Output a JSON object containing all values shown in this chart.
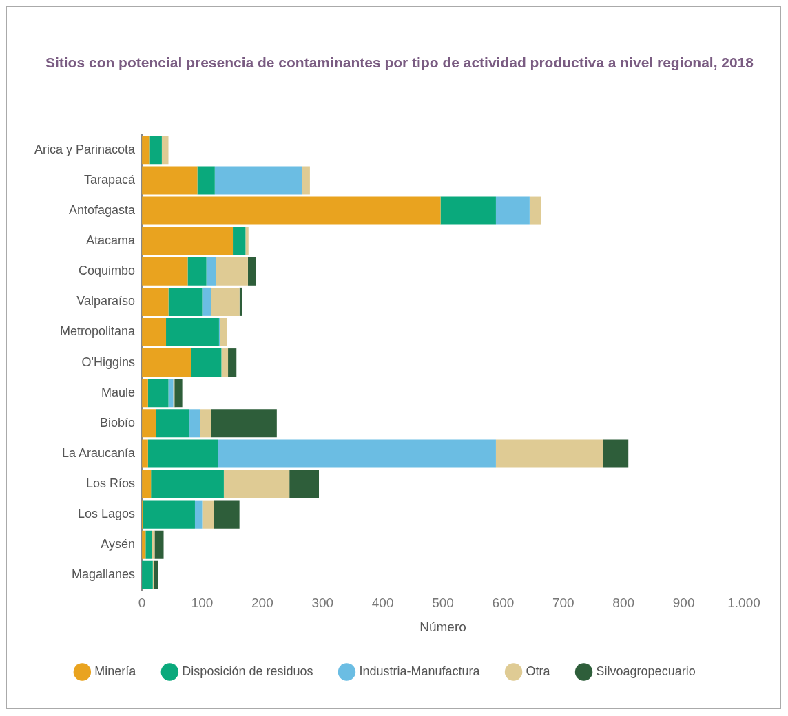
{
  "chart_data": {
    "type": "bar",
    "orientation": "horizontal",
    "stacked": true,
    "title": "Sitios con potencial presencia de contaminantes por tipo de actividad productiva a nivel regional, 2018",
    "xlabel": "Número",
    "categories": [
      "Arica y Parinacota",
      "Tarapacá",
      "Antofagasta",
      "Atacama",
      "Coquimbo",
      "Valparaíso",
      "Metropolitana",
      "O'Higgins",
      "Maule",
      "Biobío",
      "La Araucanía",
      "Los Ríos",
      "Los Lagos",
      "Aysén",
      "Magallanes"
    ],
    "series": [
      {
        "name": "Minería",
        "color": "#e9a31f",
        "values": [
          13,
          92,
          496,
          151,
          76,
          44,
          40,
          82,
          10,
          23,
          10,
          15,
          2,
          6,
          0
        ]
      },
      {
        "name": "Disposición de residuos",
        "color": "#0aa97c",
        "values": [
          20,
          29,
          92,
          21,
          31,
          56,
          88,
          50,
          34,
          56,
          116,
          121,
          86,
          10,
          18
        ]
      },
      {
        "name": "Industria-Manufactura",
        "color": "#6bbde3",
        "values": [
          0,
          145,
          56,
          0,
          16,
          15,
          2,
          0,
          8,
          18,
          462,
          0,
          12,
          0,
          0
        ]
      },
      {
        "name": "Otra",
        "color": "#dfcb94",
        "values": [
          11,
          13,
          19,
          5,
          53,
          47,
          11,
          11,
          2,
          18,
          178,
          109,
          20,
          5,
          2
        ]
      },
      {
        "name": "Silvoagropecuario",
        "color": "#2e5e3a",
        "values": [
          0,
          0,
          0,
          0,
          13,
          4,
          0,
          14,
          13,
          109,
          42,
          49,
          42,
          15,
          7
        ]
      }
    ],
    "xlim": [
      0,
      1000
    ],
    "xticks": [
      0,
      100,
      200,
      300,
      400,
      500,
      600,
      700,
      800,
      900,
      {
        "value": 1000,
        "label": "1.000"
      }
    ],
    "grid": false,
    "legend": "bottom"
  }
}
